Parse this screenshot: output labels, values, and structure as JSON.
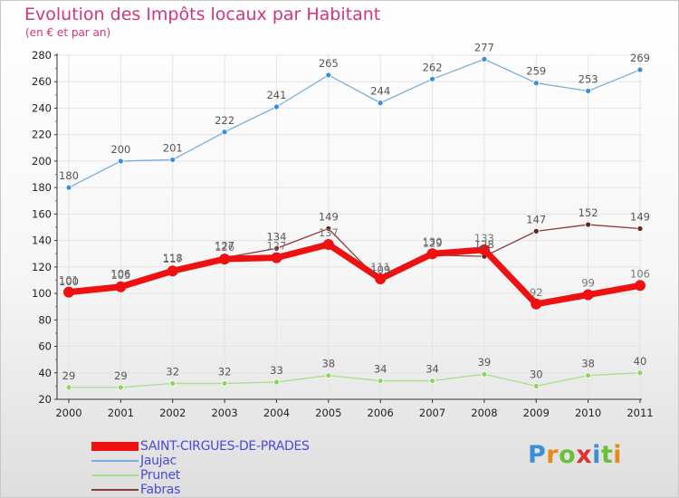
{
  "title": "Evolution des Impôts locaux par Habitant",
  "subtitle": "(en € et par an)",
  "logo": {
    "letters": [
      "P",
      "r",
      "o",
      "x",
      "i",
      "t",
      "i"
    ],
    "colors": [
      "#3a8fd6",
      "#e88a1a",
      "#6cbf3a",
      "#e03030",
      "#3a8fd6",
      "#6cbf3a",
      "#e88a1a"
    ]
  },
  "chart_data": {
    "type": "line",
    "title": "Evolution des Impôts locaux par Habitant",
    "subtitle": "(en € et par an)",
    "xlabel": "",
    "ylabel": "",
    "ylim": [
      20,
      280
    ],
    "yticks": [
      20,
      40,
      60,
      80,
      100,
      120,
      140,
      160,
      180,
      200,
      220,
      240,
      260,
      280
    ],
    "ytick_labels": [
      "20",
      "40",
      "60",
      "80",
      "100",
      "120",
      "140",
      "160",
      "180",
      "200",
      "220",
      "240",
      "260",
      "280"
    ],
    "x": [
      "2000",
      "2001",
      "2002",
      "2003",
      "2004",
      "2005",
      "2006",
      "2007",
      "2008",
      "2009",
      "2010",
      "2011"
    ],
    "grid": true,
    "legend_position": "bottom-left",
    "series": [
      {
        "name": "SAINT-CIRGUES-DE-PRADES",
        "color": "#ee1111",
        "marker_color": "#ee1111",
        "label_color": "#777777",
        "thick": true,
        "values": [
          101,
          105,
          117,
          126,
          127,
          137,
          111,
          130,
          133,
          92,
          99,
          106
        ],
        "labels": [
          "101",
          "105",
          "117",
          "126",
          "127",
          "137",
          "111",
          "130",
          "133",
          "92",
          "99",
          "106"
        ]
      },
      {
        "name": "Jaujac",
        "color": "#7aaede",
        "marker_color": "#3a8fd6",
        "label_color": "#555555",
        "thick": false,
        "values": [
          180,
          200,
          201,
          222,
          241,
          265,
          244,
          262,
          277,
          259,
          253,
          269
        ],
        "labels": [
          "180",
          "200",
          "201",
          "222",
          "241",
          "265",
          "244",
          "262",
          "277",
          "259",
          "253",
          "269"
        ]
      },
      {
        "name": "Prunet",
        "color": "#a6e08a",
        "marker_color": "#8fd45f",
        "label_color": "#555555",
        "thick": false,
        "values": [
          29,
          29,
          32,
          32,
          33,
          38,
          34,
          34,
          39,
          30,
          38,
          40
        ],
        "labels": [
          "29",
          "29",
          "32",
          "32",
          "33",
          "38",
          "34",
          "34",
          "39",
          "30",
          "38",
          "40"
        ]
      },
      {
        "name": "Fabras",
        "color": "#8a3b3b",
        "marker_color": "#6a1f1f",
        "label_color": "#555555",
        "thick": false,
        "values": [
          100,
          106,
          118,
          127,
          134,
          149,
          109,
          129,
          128,
          147,
          152,
          149
        ],
        "labels": [
          "100",
          "106",
          "118",
          "127",
          "134",
          "149",
          "109",
          "129",
          "128",
          "147",
          "152",
          "149"
        ]
      }
    ]
  }
}
